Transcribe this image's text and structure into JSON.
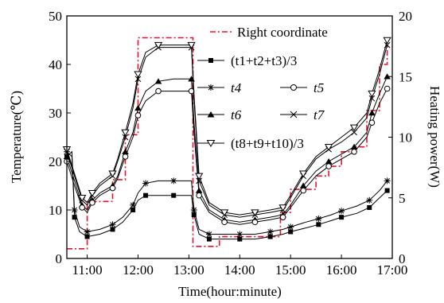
{
  "chart_data": {
    "type": "line",
    "xlabel": "Time(hour:minute)",
    "ylabel_left": "Temperature(℃)",
    "ylabel_right": "Heating power(W)",
    "xlim": [
      10.6,
      17.0
    ],
    "ylim_left": [
      0,
      50
    ],
    "ylim_right": [
      0,
      20
    ],
    "x_ticks": [
      11,
      12,
      13,
      14,
      15,
      16,
      17
    ],
    "x_tick_labels": [
      "11:00",
      "12:00",
      "13:00",
      "14:00",
      "15:00",
      "16:00",
      "17:00"
    ],
    "y_left_ticks": [
      "0",
      "10",
      "20",
      "30",
      "40",
      "50"
    ],
    "y_right_ticks": [
      "0",
      "5",
      "10",
      "15",
      "20"
    ],
    "grid": false,
    "legend_position": "top-right",
    "legend": {
      "right_coordinate": "Right coordinate",
      "avg123": "(t1+t2+t3)/3",
      "t4": "t4",
      "t5": "t5",
      "t6": "t6",
      "t7": "t7",
      "avg8910": "(t8+t9+t10)/3"
    },
    "colors": {
      "power": "#e8102a",
      "lines": "#000000"
    },
    "power_series": {
      "name": "Right coordinate",
      "axis": "right",
      "x": [
        10.6,
        11.0,
        11.0,
        11.5,
        11.5,
        11.75,
        11.75,
        12.0,
        12.0,
        13.08,
        13.08,
        13.6,
        13.6,
        14.8,
        14.8,
        15.0,
        15.0,
        15.5,
        15.5,
        15.75,
        15.75,
        16.0,
        16.0,
        16.25,
        16.25,
        16.5,
        16.5,
        16.75,
        16.75,
        16.9,
        16.9
      ],
      "y": [
        0.8,
        0.8,
        4.7,
        4.7,
        6.5,
        6.5,
        10.2,
        10.2,
        18.2,
        18.2,
        1.0,
        1.0,
        1.8,
        1.8,
        3.8,
        3.8,
        5.7,
        5.7,
        6.8,
        6.8,
        7.6,
        7.6,
        8.8,
        8.8,
        9.2,
        9.2,
        12.2,
        12.2,
        16.0,
        16.0,
        18.0
      ]
    },
    "series": [
      {
        "name": "avg123",
        "marker": "square",
        "x": [
          10.6,
          10.7,
          10.75,
          10.85,
          11.0,
          11.25,
          11.5,
          11.7,
          11.9,
          12.0,
          12.15,
          12.4,
          12.7,
          13.05,
          13.1,
          13.2,
          13.4,
          13.7,
          14.0,
          14.3,
          14.6,
          14.85,
          15.0,
          15.3,
          15.55,
          15.8,
          16.0,
          16.3,
          16.55,
          16.75,
          16.9
        ],
        "y": [
          21,
          22,
          8.5,
          5.5,
          4.5,
          5,
          6,
          7.5,
          10,
          12,
          13,
          13,
          13,
          13,
          9,
          5,
          4,
          4,
          4,
          4,
          4.5,
          5,
          5.5,
          6.3,
          7,
          7.8,
          8.5,
          9.3,
          10.5,
          12.5,
          14
        ]
      },
      {
        "name": "t4",
        "marker": "asterisk",
        "x": [
          10.6,
          10.7,
          10.75,
          10.85,
          11.0,
          11.25,
          11.5,
          11.7,
          11.9,
          12.0,
          12.15,
          12.4,
          12.7,
          13.05,
          13.1,
          13.2,
          13.4,
          13.7,
          14.0,
          14.3,
          14.6,
          14.85,
          15.0,
          15.3,
          15.55,
          15.8,
          16.0,
          16.3,
          16.55,
          16.75,
          16.9
        ],
        "y": [
          22,
          21,
          10,
          6.5,
          5.5,
          6,
          7,
          8.5,
          11,
          13.5,
          15.5,
          16,
          16,
          16,
          10,
          6,
          5,
          5,
          5,
          5,
          5.5,
          6,
          6.5,
          7.5,
          8.2,
          9,
          9.8,
          10.8,
          12,
          14,
          16
        ]
      },
      {
        "name": "t6",
        "marker": "triangle",
        "x": [
          10.6,
          10.75,
          10.9,
          11.0,
          11.1,
          11.25,
          11.5,
          11.6,
          11.75,
          11.9,
          12.0,
          12.15,
          12.4,
          12.7,
          13.05,
          13.1,
          13.2,
          13.4,
          13.7,
          14.0,
          14.3,
          14.6,
          14.85,
          15.0,
          15.25,
          15.5,
          15.75,
          16.0,
          16.25,
          16.5,
          16.6,
          16.75,
          16.9
        ],
        "y": [
          21,
          16,
          11,
          10,
          12,
          13.5,
          15,
          17,
          22,
          26,
          31,
          34.5,
          36.5,
          37,
          37,
          28,
          14,
          10,
          8,
          7.5,
          8,
          8.5,
          9,
          11,
          15,
          18,
          20,
          21.5,
          23,
          26,
          30,
          34,
          37.5
        ]
      },
      {
        "name": "t5",
        "marker": "circle",
        "x": [
          10.6,
          10.75,
          10.9,
          11.0,
          11.1,
          11.25,
          11.5,
          11.6,
          11.75,
          11.9,
          12.0,
          12.15,
          12.4,
          12.7,
          13.05,
          13.1,
          13.2,
          13.4,
          13.7,
          14.0,
          14.3,
          14.6,
          14.85,
          15.0,
          15.25,
          15.5,
          15.75,
          16.0,
          16.25,
          16.5,
          16.6,
          16.75,
          16.9
        ],
        "y": [
          20,
          15,
          10.5,
          9.5,
          11.5,
          13,
          14.5,
          16.5,
          21,
          25,
          29.5,
          32.5,
          34.5,
          34.5,
          34.5,
          26,
          13,
          9.5,
          7.5,
          7,
          7.5,
          8,
          8.5,
          10.5,
          14,
          17,
          19,
          20.5,
          22,
          25,
          28,
          32,
          35
        ]
      },
      {
        "name": "t7",
        "marker": "x",
        "x": [
          10.6,
          10.75,
          10.9,
          11.0,
          11.1,
          11.25,
          11.5,
          11.6,
          11.75,
          11.9,
          12.0,
          12.15,
          12.4,
          12.7,
          13.05,
          13.1,
          13.2,
          13.4,
          13.7,
          14.0,
          14.3,
          14.6,
          14.85,
          15.0,
          15.25,
          15.5,
          15.75,
          16.0,
          16.25,
          16.5,
          16.6,
          16.75,
          16.9
        ],
        "y": [
          22,
          17,
          12,
          11,
          13,
          15,
          17,
          20,
          25,
          31,
          37,
          41.5,
          43.5,
          43.5,
          43.5,
          33,
          16,
          11,
          9,
          8.5,
          9,
          9.5,
          10,
          12.5,
          17,
          20.5,
          22.5,
          24,
          26,
          29,
          33,
          38,
          44
        ]
      },
      {
        "name": "avg8910",
        "marker": "triangle-down",
        "x": [
          10.6,
          10.75,
          10.9,
          11.0,
          11.1,
          11.25,
          11.5,
          11.6,
          11.75,
          11.9,
          12.0,
          12.15,
          12.4,
          12.7,
          13.05,
          13.1,
          13.2,
          13.4,
          13.7,
          14.0,
          14.3,
          14.6,
          14.85,
          15.0,
          15.25,
          15.5,
          15.75,
          16.0,
          16.25,
          16.5,
          16.6,
          16.75,
          16.9
        ],
        "y": [
          22.5,
          17.5,
          12.5,
          11.5,
          13.5,
          15.5,
          17.5,
          20.5,
          26,
          32,
          38,
          42.5,
          44,
          44,
          44,
          34,
          17,
          11.5,
          9.5,
          9,
          9.5,
          10,
          10.5,
          13,
          17.5,
          21,
          23,
          25,
          27,
          30,
          34,
          39,
          45
        ]
      }
    ]
  }
}
